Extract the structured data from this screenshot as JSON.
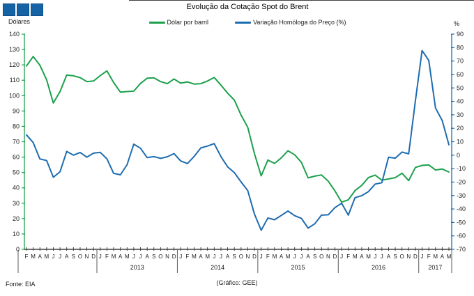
{
  "header": {
    "title": "Evolução da Cotação Spot do Brent",
    "logo_color": "#1563A5"
  },
  "legend": [
    {
      "label": "Dólar por barril",
      "color": "#1CA04C"
    },
    {
      "label": "Variação Homóloga do Preço (%)",
      "color": "#1E6CB0"
    }
  ],
  "footer": {
    "source": "Fonte: EIA",
    "credit": "(Gráfico: GEE)"
  },
  "chart_data": {
    "type": "line",
    "title": "Evolução da Cotação Spot do Brent",
    "grid": false,
    "left_axis": {
      "label": "Dólares",
      "min": 0,
      "max": 140,
      "step": 10,
      "color": "#1CA04C"
    },
    "right_axis": {
      "label": "%",
      "min": -70,
      "max": 90,
      "step": 10,
      "color": "#1E6CB0"
    },
    "x_months": [
      "F",
      "M",
      "A",
      "M",
      "J",
      "J",
      "A",
      "S",
      "O",
      "N",
      "D",
      "J",
      "F",
      "M",
      "A",
      "M",
      "J",
      "J",
      "A",
      "S",
      "O",
      "N",
      "D",
      "J",
      "F",
      "M",
      "A",
      "M",
      "J",
      "J",
      "A",
      "S",
      "O",
      "N",
      "D",
      "J",
      "F",
      "M",
      "A",
      "M",
      "J",
      "J",
      "A",
      "S",
      "O",
      "N",
      "D",
      "J",
      "F",
      "M",
      "A",
      "M",
      "J",
      "J",
      "A",
      "S",
      "O",
      "N",
      "D",
      "J",
      "F",
      "M",
      "A",
      "M"
    ],
    "year_groups": [
      {
        "label": "",
        "count": 11
      },
      {
        "label": "2013",
        "count": 12
      },
      {
        "label": "2014",
        "count": 12
      },
      {
        "label": "2015",
        "count": 12
      },
      {
        "label": "2016",
        "count": 12
      },
      {
        "label": "2017",
        "count": 5
      }
    ],
    "series": [
      {
        "name": "Dólar por barril",
        "axis": "left",
        "color": "#1CA04C",
        "values": [
          119.3,
          125.4,
          119.8,
          110.3,
          95.2,
          102.6,
          113.4,
          112.9,
          111.7,
          109.1,
          109.5,
          113.0,
          116.1,
          108.5,
          102.3,
          102.6,
          102.9,
          107.9,
          111.3,
          111.6,
          109.1,
          107.8,
          110.8,
          108.1,
          108.9,
          107.5,
          107.8,
          109.5,
          111.8,
          106.8,
          101.6,
          97.1,
          87.4,
          79.4,
          62.3,
          47.8,
          58.1,
          55.9,
          59.5,
          64.1,
          61.5,
          56.6,
          46.5,
          47.6,
          48.4,
          44.3,
          38.0,
          30.7,
          32.2,
          38.2,
          41.6,
          46.7,
          48.3,
          45.0,
          45.8,
          46.6,
          49.5,
          44.7,
          53.3,
          54.6,
          54.9,
          51.6,
          52.3,
          50.3
        ]
      },
      {
        "name": "Variação Homóloga do Preço (%)",
        "axis": "right",
        "color": "#1E6CB0",
        "values": [
          15.1,
          9.4,
          -2.8,
          -4.0,
          -16.4,
          -12.3,
          2.8,
          0.0,
          2.0,
          -1.5,
          1.5,
          2.1,
          -2.7,
          -13.5,
          -14.6,
          -7.1,
          8.2,
          5.2,
          -1.8,
          -1.1,
          -2.4,
          -1.2,
          1.2,
          -4.3,
          -6.2,
          -0.9,
          5.4,
          6.8,
          8.6,
          -1.1,
          -8.7,
          -13.0,
          -19.8,
          -26.3,
          -43.7,
          -55.8,
          -46.7,
          -48.0,
          -44.8,
          -41.5,
          -45.0,
          -47.0,
          -54.2,
          -51.0,
          -44.6,
          -44.3,
          -39.0,
          -35.7,
          -44.6,
          -31.6,
          -30.1,
          -27.1,
          -21.5,
          -20.5,
          -1.5,
          -2.2,
          2.3,
          1.0,
          40.3,
          77.8,
          70.5,
          35.0,
          25.8,
          7.7
        ]
      }
    ]
  }
}
